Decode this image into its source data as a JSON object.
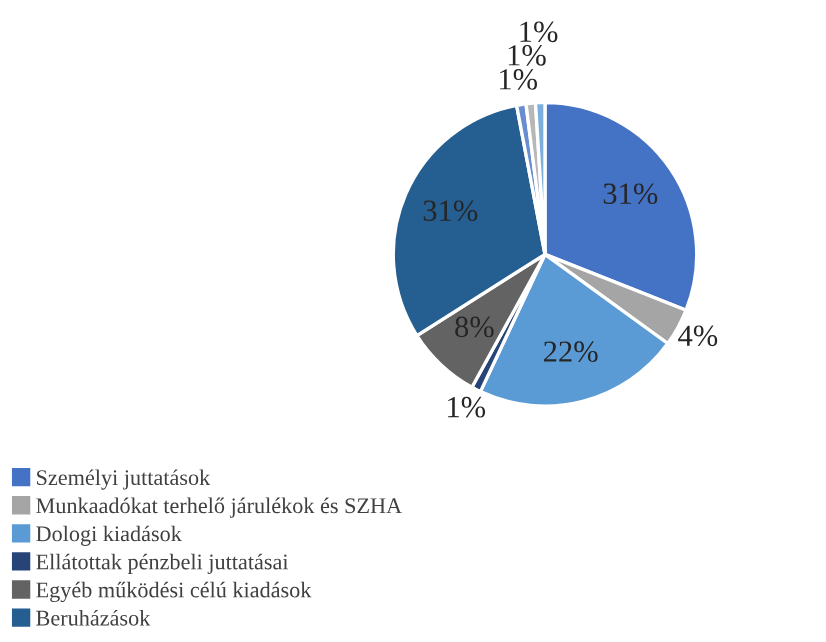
{
  "chart_data": {
    "type": "pie",
    "categories": [
      "Személyi juttatások",
      "Munkaadókat terhelő járulékok és SZHA",
      "Dologi kiadások",
      "Ellátottak pénzbeli juttatásai",
      "Egyéb működési célú kiadások",
      "Beruházások",
      null,
      null,
      null
    ],
    "values": [
      31,
      4,
      22,
      1,
      8,
      31,
      1,
      1,
      1
    ],
    "colors": [
      "#4472c4",
      "#a5a5a5",
      "#5b9bd5",
      "#264478",
      "#636363",
      "#255e91",
      "#698ed0",
      "#b7b7b7",
      "#7cafdd"
    ],
    "value_labels": [
      "31%",
      "4%",
      "22%",
      "1%",
      "8%",
      "31%",
      "1%",
      "1%",
      "1%"
    ],
    "legend": "bottom left"
  }
}
